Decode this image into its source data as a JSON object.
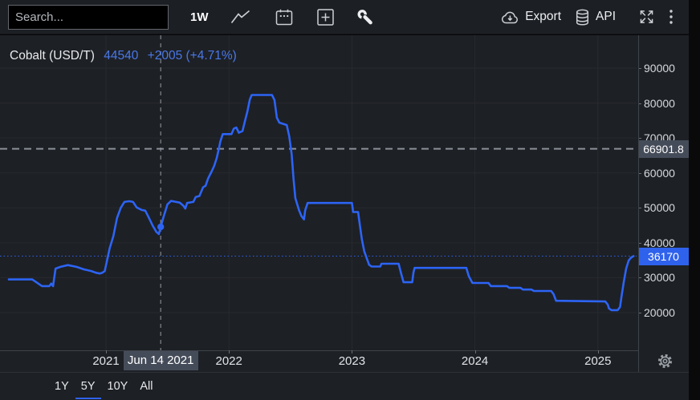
{
  "toolbar": {
    "search_placeholder": "Search...",
    "timeframe": "1W",
    "export_label": "Export",
    "api_label": "API",
    "left_icons": [
      "line-chart-icon",
      "calendar-icon",
      "add-icon",
      "tools-icon"
    ],
    "right_icons": [
      "export-cloud-icon",
      "api-database-icon",
      "fullscreen-icon",
      "more-options-icon"
    ]
  },
  "chart_header": {
    "instrument": "Cobalt (USD/T)",
    "price": "44540",
    "change": "+2005 (+4.71%)"
  },
  "chart_data": {
    "type": "line",
    "title": "Cobalt (USD/T)",
    "xlabel": "",
    "ylabel": "USD/T",
    "grid": true,
    "legend_position": "none",
    "x_ticks": [
      2021,
      2022,
      2023,
      2024,
      2025
    ],
    "x_tick_labels": [
      "2021",
      "2022",
      "2023",
      "2024",
      "2025"
    ],
    "y_ticks": [
      20000,
      30000,
      40000,
      50000,
      60000,
      70000,
      80000,
      90000
    ],
    "ylim": [
      20000,
      90000
    ],
    "reference_lines": {
      "dashed_value": 66901.8,
      "dashed_label": "66901.8",
      "current_value": 36170,
      "current_label": "36170"
    },
    "crosshair": {
      "x": 2021.445,
      "x_label": "Jun 14 2021",
      "value": 44540
    },
    "series": [
      {
        "name": "Cobalt (USD/T)",
        "points": [
          [
            2020.21,
            29500
          ],
          [
            2020.4,
            29500
          ],
          [
            2020.43,
            28800
          ],
          [
            2020.48,
            27600
          ],
          [
            2020.54,
            27600
          ],
          [
            2020.555,
            28300
          ],
          [
            2020.57,
            27600
          ],
          [
            2020.59,
            32600
          ],
          [
            2020.63,
            33100
          ],
          [
            2020.69,
            33600
          ],
          [
            2020.76,
            33100
          ],
          [
            2020.82,
            32400
          ],
          [
            2020.88,
            31900
          ],
          [
            2020.92,
            31400
          ],
          [
            2020.95,
            31200
          ],
          [
            2020.97,
            31400
          ],
          [
            2020.99,
            31900
          ],
          [
            2021.03,
            38400
          ],
          [
            2021.06,
            41900
          ],
          [
            2021.09,
            47100
          ],
          [
            2021.12,
            50000
          ],
          [
            2021.15,
            51700
          ],
          [
            2021.19,
            51900
          ],
          [
            2021.22,
            51700
          ],
          [
            2021.25,
            50100
          ],
          [
            2021.29,
            49400
          ],
          [
            2021.32,
            49200
          ],
          [
            2021.35,
            47100
          ],
          [
            2021.38,
            44900
          ],
          [
            2021.41,
            43100
          ],
          [
            2021.43,
            42500
          ],
          [
            2021.445,
            44540
          ],
          [
            2021.47,
            47600
          ],
          [
            2021.5,
            51000
          ],
          [
            2021.53,
            52000
          ],
          [
            2021.57,
            51700
          ],
          [
            2021.6,
            51500
          ],
          [
            2021.63,
            50600
          ],
          [
            2021.645,
            49800
          ],
          [
            2021.66,
            51400
          ],
          [
            2021.71,
            51700
          ],
          [
            2021.73,
            53100
          ],
          [
            2021.76,
            53400
          ],
          [
            2021.79,
            55900
          ],
          [
            2021.81,
            56300
          ],
          [
            2021.83,
            58400
          ],
          [
            2021.86,
            60500
          ],
          [
            2021.88,
            62000
          ],
          [
            2021.9,
            64200
          ],
          [
            2021.92,
            67200
          ],
          [
            2021.93,
            69000
          ],
          [
            2021.95,
            71100
          ],
          [
            2022.02,
            71100
          ],
          [
            2022.04,
            72700
          ],
          [
            2022.06,
            73000
          ],
          [
            2022.08,
            71500
          ],
          [
            2022.11,
            72000
          ],
          [
            2022.13,
            74800
          ],
          [
            2022.15,
            77600
          ],
          [
            2022.17,
            81000
          ],
          [
            2022.185,
            82300
          ],
          [
            2022.35,
            82300
          ],
          [
            2022.37,
            80900
          ],
          [
            2022.39,
            75800
          ],
          [
            2022.41,
            74400
          ],
          [
            2022.47,
            73700
          ],
          [
            2022.49,
            70500
          ],
          [
            2022.51,
            65400
          ],
          [
            2022.525,
            58500
          ],
          [
            2022.54,
            52800
          ],
          [
            2022.57,
            49300
          ],
          [
            2022.59,
            47600
          ],
          [
            2022.61,
            46700
          ],
          [
            2022.62,
            49300
          ],
          [
            2022.64,
            51400
          ],
          [
            2023.0,
            51400
          ],
          [
            2023.01,
            48800
          ],
          [
            2023.05,
            48800
          ],
          [
            2023.06,
            46200
          ],
          [
            2023.08,
            41100
          ],
          [
            2023.1,
            37600
          ],
          [
            2023.12,
            35600
          ],
          [
            2023.14,
            33700
          ],
          [
            2023.16,
            33200
          ],
          [
            2023.23,
            33200
          ],
          [
            2023.24,
            34000
          ],
          [
            2023.38,
            34000
          ],
          [
            2023.4,
            31200
          ],
          [
            2023.42,
            28700
          ],
          [
            2023.49,
            28700
          ],
          [
            2023.5,
            31400
          ],
          [
            2023.51,
            32800
          ],
          [
            2023.93,
            32800
          ],
          [
            2023.95,
            30500
          ],
          [
            2023.98,
            28500
          ],
          [
            2024.11,
            28500
          ],
          [
            2024.13,
            27600
          ],
          [
            2024.26,
            27600
          ],
          [
            2024.28,
            27100
          ],
          [
            2024.37,
            27100
          ],
          [
            2024.39,
            26600
          ],
          [
            2024.46,
            26600
          ],
          [
            2024.48,
            26200
          ],
          [
            2024.62,
            26200
          ],
          [
            2024.64,
            25300
          ],
          [
            2024.66,
            23400
          ],
          [
            2025.06,
            23200
          ],
          [
            2025.08,
            22300
          ],
          [
            2025.09,
            21200
          ],
          [
            2025.11,
            20700
          ],
          [
            2025.16,
            20700
          ],
          [
            2025.18,
            21600
          ],
          [
            2025.19,
            24100
          ],
          [
            2025.21,
            28700
          ],
          [
            2025.23,
            32600
          ],
          [
            2025.25,
            34900
          ],
          [
            2025.27,
            35800
          ],
          [
            2025.29,
            36170
          ]
        ]
      }
    ]
  },
  "footer": {
    "ranges": [
      {
        "label": "1Y",
        "selected": false
      },
      {
        "label": "5Y",
        "selected": true
      },
      {
        "label": "10Y",
        "selected": false
      },
      {
        "label": "All",
        "selected": false
      }
    ]
  },
  "colors": {
    "accent": "#2f62ec",
    "line": "#2d64f5",
    "current_label_bg": "#2f62ec",
    "reference_label_bg": "#454c59",
    "grid": "#272a2f",
    "crosshair": "#989ca4",
    "background": "#1d2025"
  }
}
